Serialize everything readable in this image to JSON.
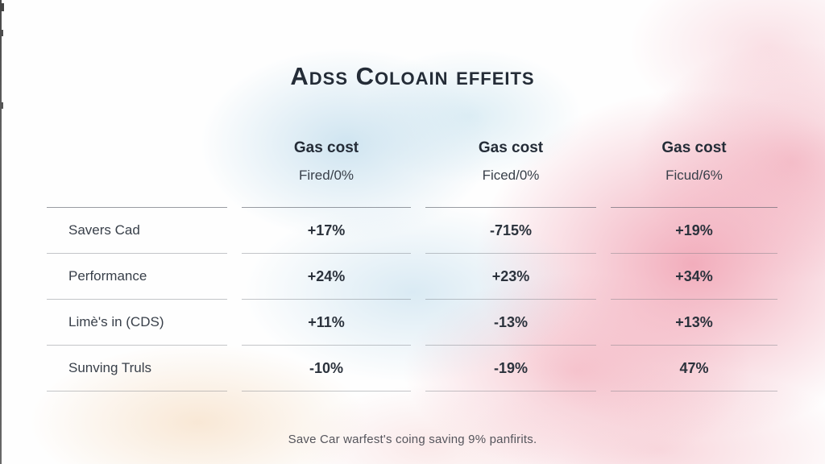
{
  "title": "Adss Coloain effeits",
  "columns": [
    {
      "label": "Gas cost",
      "sublabel": "Fired/0%"
    },
    {
      "label": "Gas cost",
      "sublabel": "Ficed/0%"
    },
    {
      "label": "Gas cost",
      "sublabel": "Ficud/6%"
    }
  ],
  "rows": [
    {
      "label": "Savers Cad",
      "values": [
        "+17%",
        "-715%",
        "+19%"
      ]
    },
    {
      "label": "Performance",
      "values": [
        "+24%",
        "+23%",
        "+34%"
      ]
    },
    {
      "label": "Limè's in (CDS)",
      "values": [
        "+11%",
        "-13%",
        "+13%"
      ]
    },
    {
      "label": "Sunving Truls",
      "values": [
        "-10%",
        "-19%",
        "47%"
      ]
    }
  ],
  "footer": "Save Car warfest's coing saving 9% panfirits.",
  "chart_data": {
    "type": "table",
    "title": "Adss Coloain effeits",
    "column_headers": [
      "Gas cost Fired/0%",
      "Gas cost Ficed/0%",
      "Gas cost Ficud/6%"
    ],
    "row_labels": [
      "Savers Cad",
      "Performance",
      "Limè's in (CDS)",
      "Sunving Truls"
    ],
    "values": [
      [
        "+17%",
        "-715%",
        "+19%"
      ],
      [
        "+24%",
        "+23%",
        "+34%"
      ],
      [
        "+11%",
        "-13%",
        "+13%"
      ],
      [
        "-10%",
        "-19%",
        "47%"
      ]
    ],
    "caption": "Save Car warfest's coing saving 9% panfirits."
  },
  "colors": {
    "text_dark": "#242c37",
    "text_muted": "#55555c",
    "wash_blue": "#c7e0ee",
    "wash_pink": "#f1a6b6",
    "wash_peach": "#f8e6d2",
    "rule_line": "#73767e"
  }
}
